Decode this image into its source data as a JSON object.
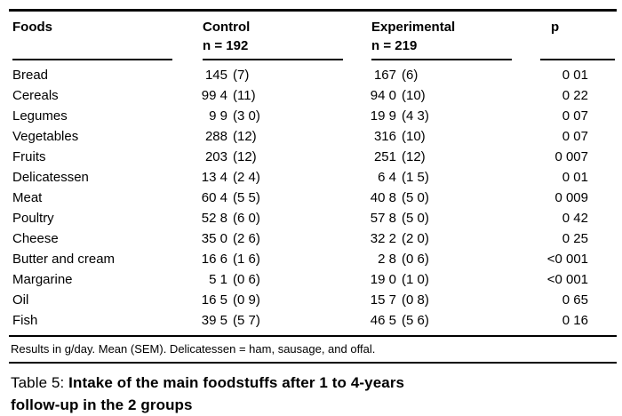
{
  "table": {
    "columns": {
      "foods": "Foods",
      "control": "Control",
      "control_n": "n = 192",
      "experimental": "Experimental",
      "experimental_n": "n = 219",
      "p": "p"
    },
    "rows": [
      {
        "food": "Bread",
        "control_mean": "145",
        "control_sem": "(7)",
        "exp_mean": "167",
        "exp_sem": "(6)",
        "p": "0 01"
      },
      {
        "food": "Cereals",
        "control_mean": "99 4",
        "control_sem": "(11)",
        "exp_mean": "94 0",
        "exp_sem": "(10)",
        "p": "0 22"
      },
      {
        "food": "Legumes",
        "control_mean": "9 9",
        "control_sem": "(3 0)",
        "exp_mean": "19 9",
        "exp_sem": "(4 3)",
        "p": "0 07"
      },
      {
        "food": "Vegetables",
        "control_mean": "288",
        "control_sem": "(12)",
        "exp_mean": "316",
        "exp_sem": "(10)",
        "p": "0 07"
      },
      {
        "food": "Fruits",
        "control_mean": "203",
        "control_sem": "(12)",
        "exp_mean": "251",
        "exp_sem": "(12)",
        "p": "0 007"
      },
      {
        "food": "Delicatessen",
        "control_mean": "13 4",
        "control_sem": "(2 4)",
        "exp_mean": "6 4",
        "exp_sem": "(1 5)",
        "p": "0 01"
      },
      {
        "food": "Meat",
        "control_mean": "60 4",
        "control_sem": "(5 5)",
        "exp_mean": "40 8",
        "exp_sem": "(5 0)",
        "p": "0 009"
      },
      {
        "food": "Poultry",
        "control_mean": "52 8",
        "control_sem": "(6 0)",
        "exp_mean": "57 8",
        "exp_sem": "(5 0)",
        "p": "0 42"
      },
      {
        "food": "Cheese",
        "control_mean": "35 0",
        "control_sem": "(2 6)",
        "exp_mean": "32 2",
        "exp_sem": "(2 0)",
        "p": "0 25"
      },
      {
        "food": "Butter and cream",
        "control_mean": "16 6",
        "control_sem": "(1 6)",
        "exp_mean": "2 8",
        "exp_sem": "(0 6)",
        "p": "<0 001"
      },
      {
        "food": "Margarine",
        "control_mean": "5 1",
        "control_sem": "(0 6)",
        "exp_mean": "19 0",
        "exp_sem": "(1 0)",
        "p": "<0 001"
      },
      {
        "food": "Oil",
        "control_mean": "16 5",
        "control_sem": "(0 9)",
        "exp_mean": "15 7",
        "exp_sem": "(0 8)",
        "p": "0 65"
      },
      {
        "food": "Fish",
        "control_mean": "39 5",
        "control_sem": "(5 7)",
        "exp_mean": "46 5",
        "exp_sem": "(5 6)",
        "p": "0 16"
      }
    ],
    "footnote": "Results in g/day. Mean (SEM). Delicatessen = ham, sausage, and offal.",
    "caption": {
      "prefix": "Table 5:",
      "line1": "Intake of the main foodstuffs after 1 to 4-years",
      "line2": "follow-up in the 2 groups"
    }
  },
  "colors": {
    "text": "#000000",
    "background": "#ffffff",
    "rule": "#000000"
  }
}
